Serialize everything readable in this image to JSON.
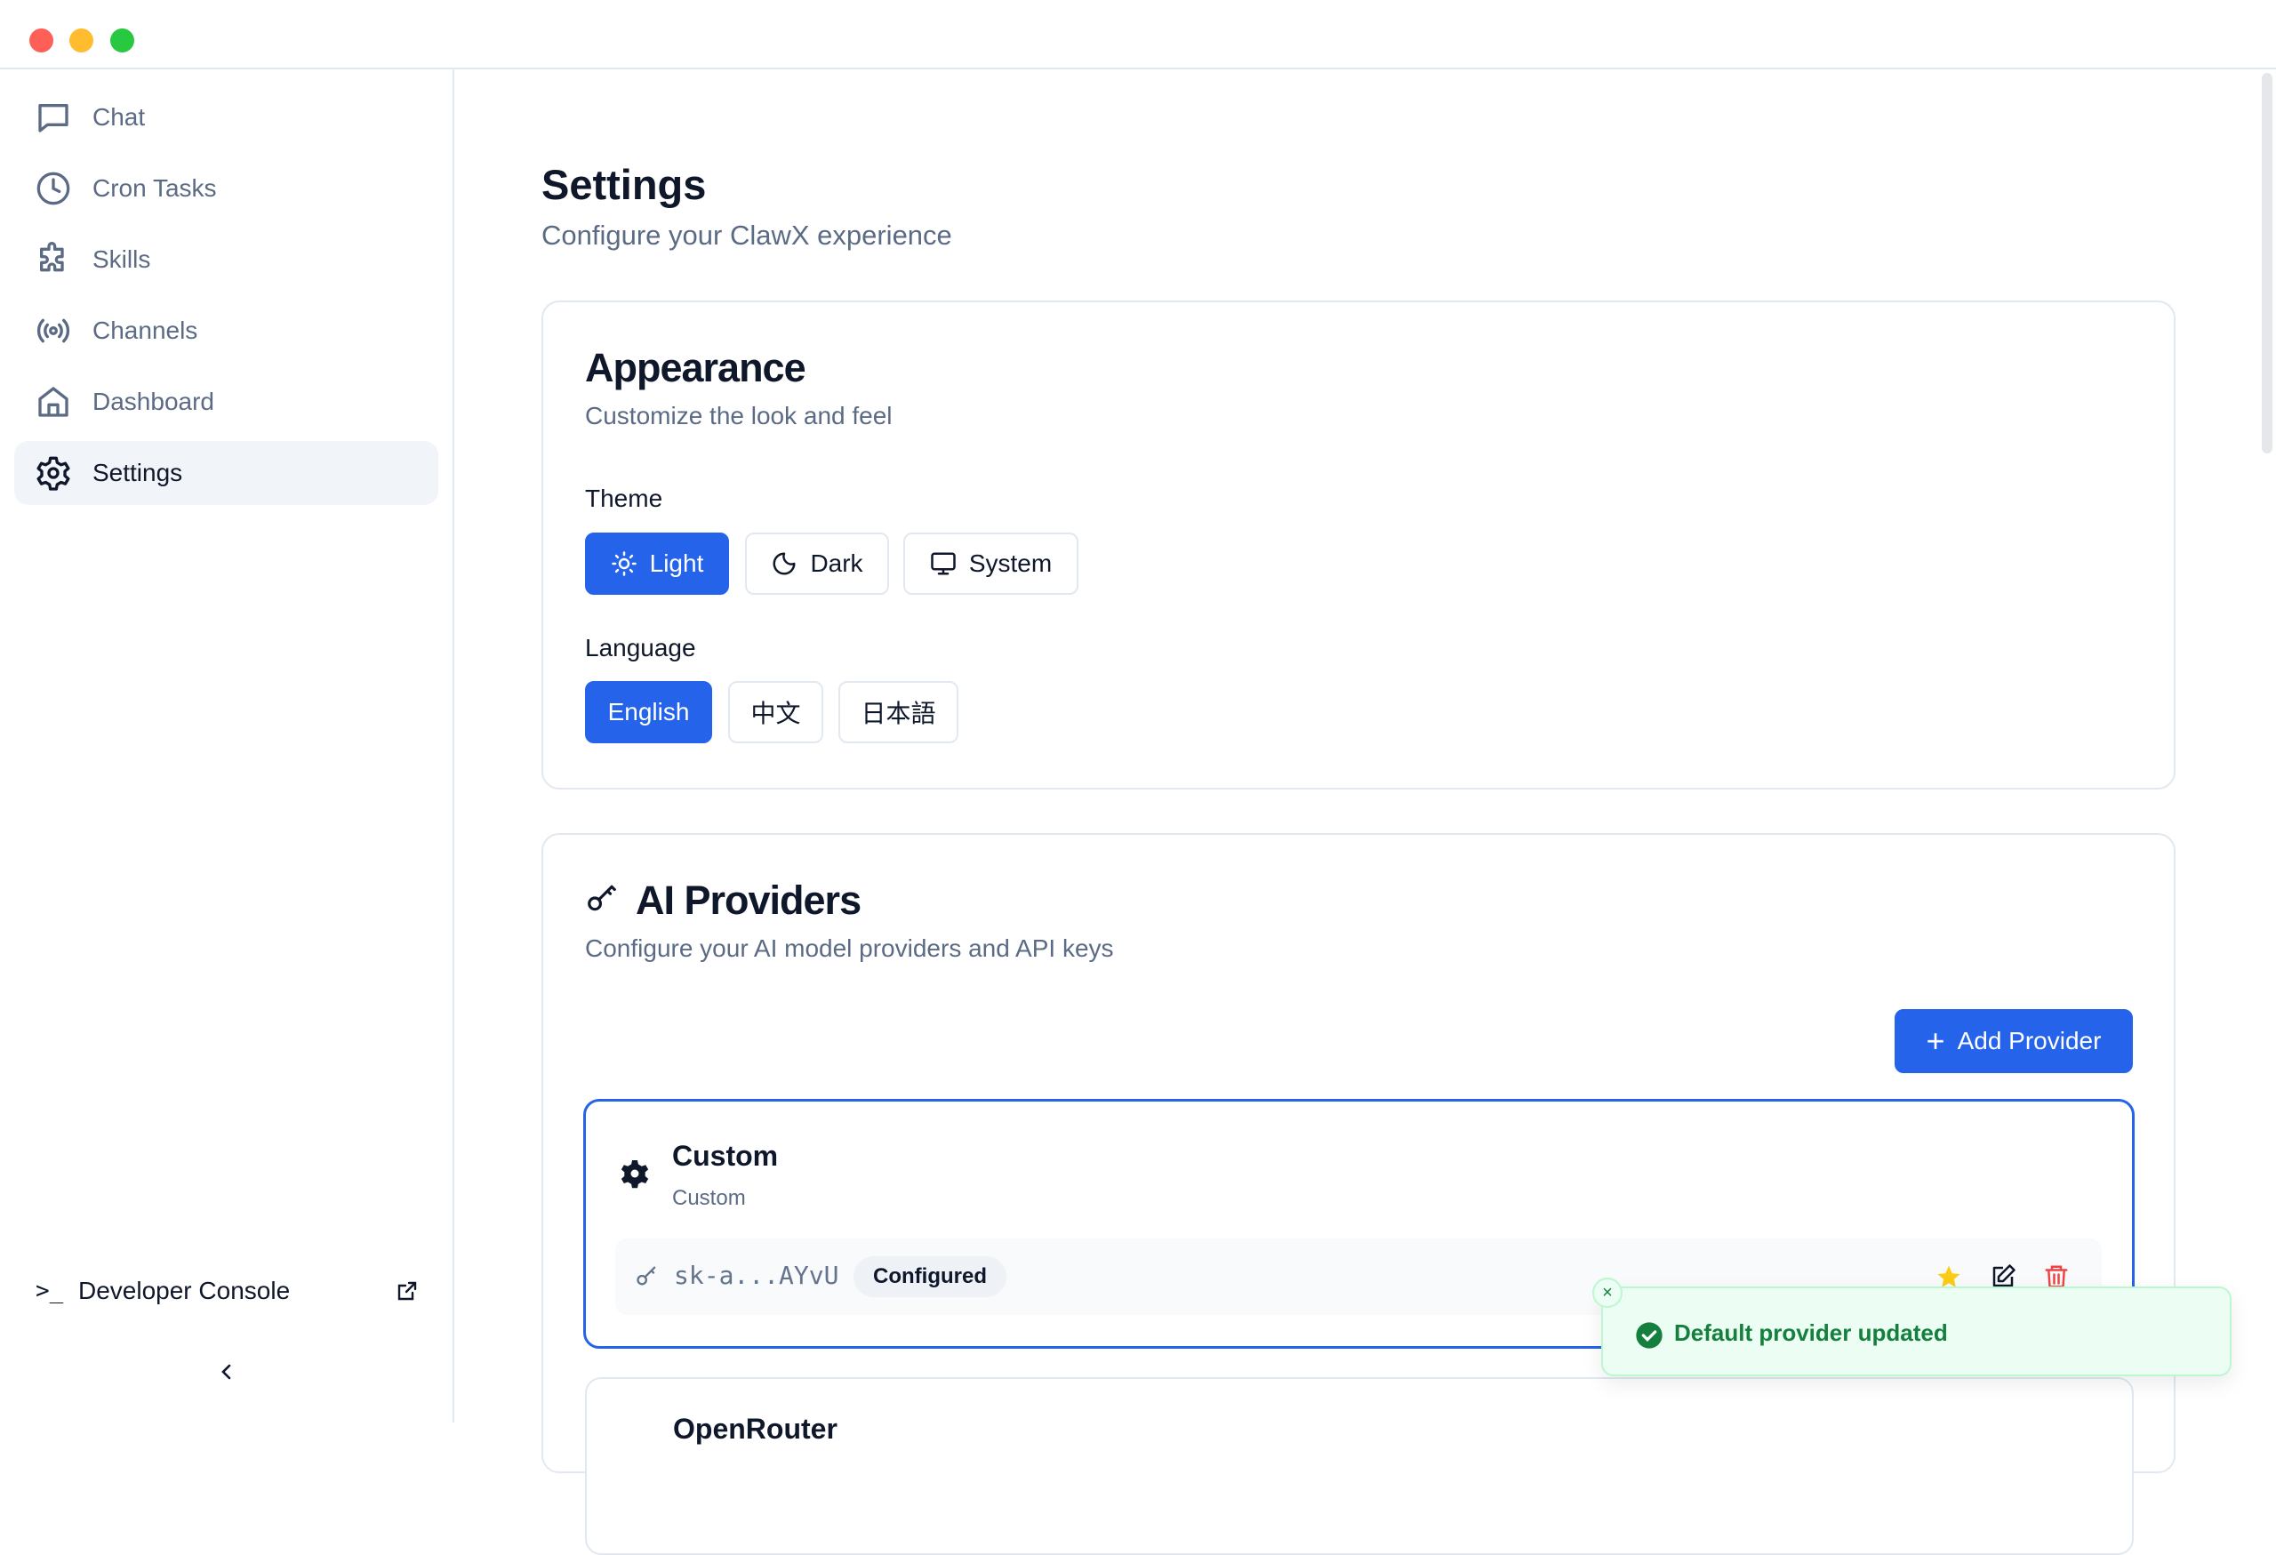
{
  "sidebar": {
    "items": [
      {
        "label": "Chat",
        "icon": "chat-icon"
      },
      {
        "label": "Cron Tasks",
        "icon": "clock-icon"
      },
      {
        "label": "Skills",
        "icon": "puzzle-icon"
      },
      {
        "label": "Channels",
        "icon": "radio-icon"
      },
      {
        "label": "Dashboard",
        "icon": "home-icon"
      },
      {
        "label": "Settings",
        "icon": "gear-icon",
        "active": true
      }
    ],
    "developer_console": "Developer Console"
  },
  "page": {
    "title": "Settings",
    "subtitle": "Configure your ClawX experience"
  },
  "appearance": {
    "title": "Appearance",
    "subtitle": "Customize the look and feel",
    "theme_label": "Theme",
    "themes": [
      "Light",
      "Dark",
      "System"
    ],
    "theme_selected": "Light",
    "language_label": "Language",
    "languages": [
      "English",
      "中文",
      "日本語"
    ],
    "language_selected": "English"
  },
  "providers": {
    "title": "AI Providers",
    "subtitle": "Configure your AI model providers and API keys",
    "add_label": "Add Provider",
    "items": [
      {
        "name": "Custom",
        "type": "Custom",
        "key": "sk-a...AYvU",
        "status": "Configured",
        "default": true
      },
      {
        "name": "OpenRouter"
      }
    ]
  },
  "toast": {
    "message": "Default provider updated",
    "color": "#15803d"
  },
  "colors": {
    "accent": "#2563eb",
    "toast_bg": "#ecfdf3"
  }
}
